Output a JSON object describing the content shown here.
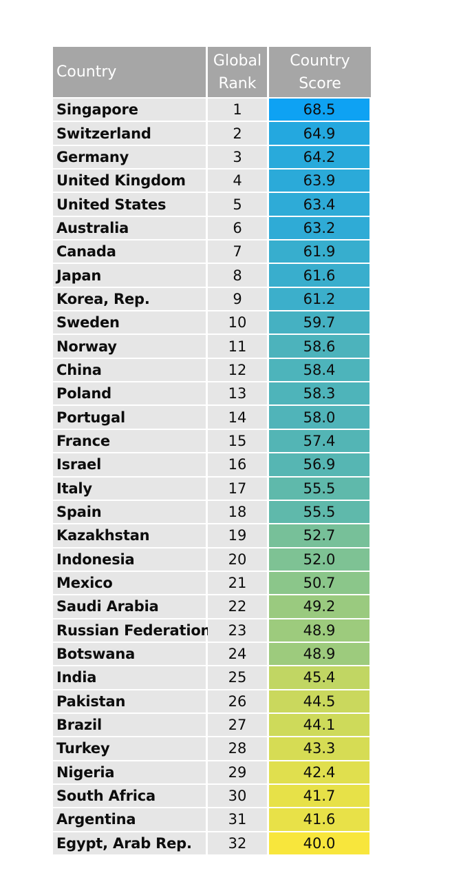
{
  "header": {
    "country": "Country",
    "rank": "Global\nRank",
    "score": "Country\nScore"
  },
  "colors": {
    "header_bg": "#a6a6a6",
    "row_bg": "#e6e6e6",
    "score_high": "#0ea2f3",
    "score_mid": "#67bba4",
    "score_low": "#f8e63c"
  },
  "chart_data": {
    "type": "table",
    "columns": [
      "Country",
      "Global Rank",
      "Country Score"
    ],
    "rows": [
      {
        "country": "Singapore",
        "rank": "1",
        "score": "68.5"
      },
      {
        "country": "Switzerland",
        "rank": "2",
        "score": "64.9"
      },
      {
        "country": "Germany",
        "rank": "3",
        "score": "64.2"
      },
      {
        "country": "United Kingdom",
        "rank": "4",
        "score": "63.9"
      },
      {
        "country": "United States",
        "rank": "5",
        "score": "63.4"
      },
      {
        "country": "Australia",
        "rank": "6",
        "score": "63.2"
      },
      {
        "country": "Canada",
        "rank": "7",
        "score": "61.9"
      },
      {
        "country": "Japan",
        "rank": "8",
        "score": "61.6"
      },
      {
        "country": "Korea, Rep.",
        "rank": "9",
        "score": "61.2"
      },
      {
        "country": "Sweden",
        "rank": "10",
        "score": "59.7"
      },
      {
        "country": "Norway",
        "rank": "11",
        "score": "58.6"
      },
      {
        "country": "China",
        "rank": "12",
        "score": "58.4"
      },
      {
        "country": "Poland",
        "rank": "13",
        "score": "58.3"
      },
      {
        "country": "Portugal",
        "rank": "14",
        "score": "58.0"
      },
      {
        "country": "France",
        "rank": "15",
        "score": "57.4"
      },
      {
        "country": "Israel",
        "rank": "16",
        "score": "56.9"
      },
      {
        "country": "Italy",
        "rank": "17",
        "score": "55.5"
      },
      {
        "country": "Spain",
        "rank": "18",
        "score": "55.5"
      },
      {
        "country": "Kazakhstan",
        "rank": "19",
        "score": "52.7"
      },
      {
        "country": "Indonesia",
        "rank": "20",
        "score": "52.0"
      },
      {
        "country": "Mexico",
        "rank": "21",
        "score": "50.7"
      },
      {
        "country": "Saudi Arabia",
        "rank": "22",
        "score": "49.2"
      },
      {
        "country": "Russian Federation",
        "rank": "23",
        "score": "48.9"
      },
      {
        "country": "Botswana",
        "rank": "24",
        "score": "48.9"
      },
      {
        "country": "India",
        "rank": "25",
        "score": "45.4"
      },
      {
        "country": "Pakistan",
        "rank": "26",
        "score": "44.5"
      },
      {
        "country": "Brazil",
        "rank": "27",
        "score": "44.1"
      },
      {
        "country": "Turkey",
        "rank": "28",
        "score": "43.3"
      },
      {
        "country": "Nigeria",
        "rank": "29",
        "score": "42.4"
      },
      {
        "country": "South Africa",
        "rank": "30",
        "score": "41.7"
      },
      {
        "country": "Argentina",
        "rank": "31",
        "score": "41.6"
      },
      {
        "country": "Egypt, Arab Rep.",
        "rank": "32",
        "score": "40.0"
      }
    ]
  }
}
